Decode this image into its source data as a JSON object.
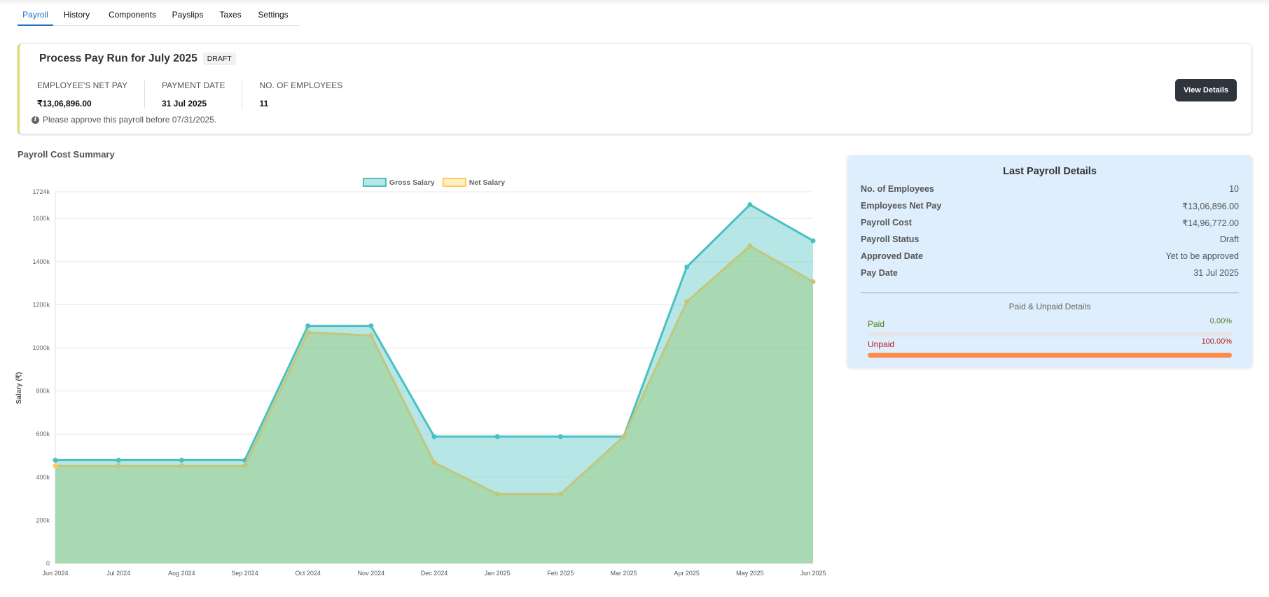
{
  "tabs": [
    "Payroll",
    "History",
    "Components",
    "Payslips",
    "Taxes",
    "Settings"
  ],
  "payrun": {
    "title": "Process Pay Run for July 2025",
    "status": "DRAFT",
    "net_pay_label": "EMPLOYEE'S NET PAY",
    "net_pay": "₹13,06,896.00",
    "payment_date_label": "PAYMENT DATE",
    "payment_date": "31 Jul 2025",
    "employees_label": "NO. OF EMPLOYEES",
    "employees": "11",
    "note": "Please approve this payroll before 07/31/2025.",
    "button": "View Details"
  },
  "section_title": "Payroll Cost Summary",
  "chart_data": {
    "type": "area",
    "title": "",
    "xlabel": "",
    "ylabel": "Salary (₹)",
    "categories": [
      "Jun 2024",
      "Jul 2024",
      "Aug 2024",
      "Sep 2024",
      "Oct 2024",
      "Nov 2024",
      "Dec 2024",
      "Jan 2025",
      "Feb 2025",
      "Mar 2025",
      "Apr 2025",
      "May 2025",
      "Jun 2025"
    ],
    "series": [
      {
        "name": "Gross Salary",
        "color": "#4bc0c0",
        "values": [
          479000,
          479000,
          479000,
          479000,
          1102000,
          1102000,
          588000,
          588000,
          588000,
          588000,
          1375000,
          1664000,
          1496772
        ]
      },
      {
        "name": "Net Salary",
        "color": "#ffcd56",
        "values": [
          453000,
          453000,
          453000,
          453000,
          1072000,
          1057000,
          468000,
          322000,
          322000,
          588000,
          1214000,
          1473000,
          1306896
        ]
      }
    ],
    "ylim": [
      0,
      1724000
    ],
    "yticks": [
      {
        "v": 0,
        "label": "0"
      },
      {
        "v": 200000,
        "label": "200k"
      },
      {
        "v": 400000,
        "label": "400k"
      },
      {
        "v": 600000,
        "label": "600k"
      },
      {
        "v": 800000,
        "label": "800k"
      },
      {
        "v": 1000000,
        "label": "1000k"
      },
      {
        "v": 1200000,
        "label": "1200k"
      },
      {
        "v": 1400000,
        "label": "1400k"
      },
      {
        "v": 1600000,
        "label": "1600k"
      },
      {
        "v": 1724000,
        "label": "1724k"
      }
    ],
    "grid": true,
    "legend": "top-center"
  },
  "last_payroll": {
    "title": "Last Payroll Details",
    "rows": [
      {
        "k": "No. of Employees",
        "v": "10"
      },
      {
        "k": "Employees Net Pay",
        "v": "₹13,06,896.00"
      },
      {
        "k": "Payroll Cost",
        "v": "₹14,96,772.00"
      },
      {
        "k": "Payroll Status",
        "v": "Draft"
      },
      {
        "k": "Approved Date",
        "v": "Yet to be approved"
      },
      {
        "k": "Pay Date",
        "v": "31 Jul 2025"
      }
    ],
    "sub_title": "Paid & Unpaid Details",
    "paid_label": "Paid",
    "paid_pct": "0.00%",
    "paid_value": 0,
    "unpaid_label": "Unpaid",
    "unpaid_pct": "100.00%",
    "unpaid_value": 100,
    "colors": {
      "paid": "#4d7c0f",
      "unpaid": "#b91c1c",
      "bar": "#ff8c4b"
    }
  }
}
